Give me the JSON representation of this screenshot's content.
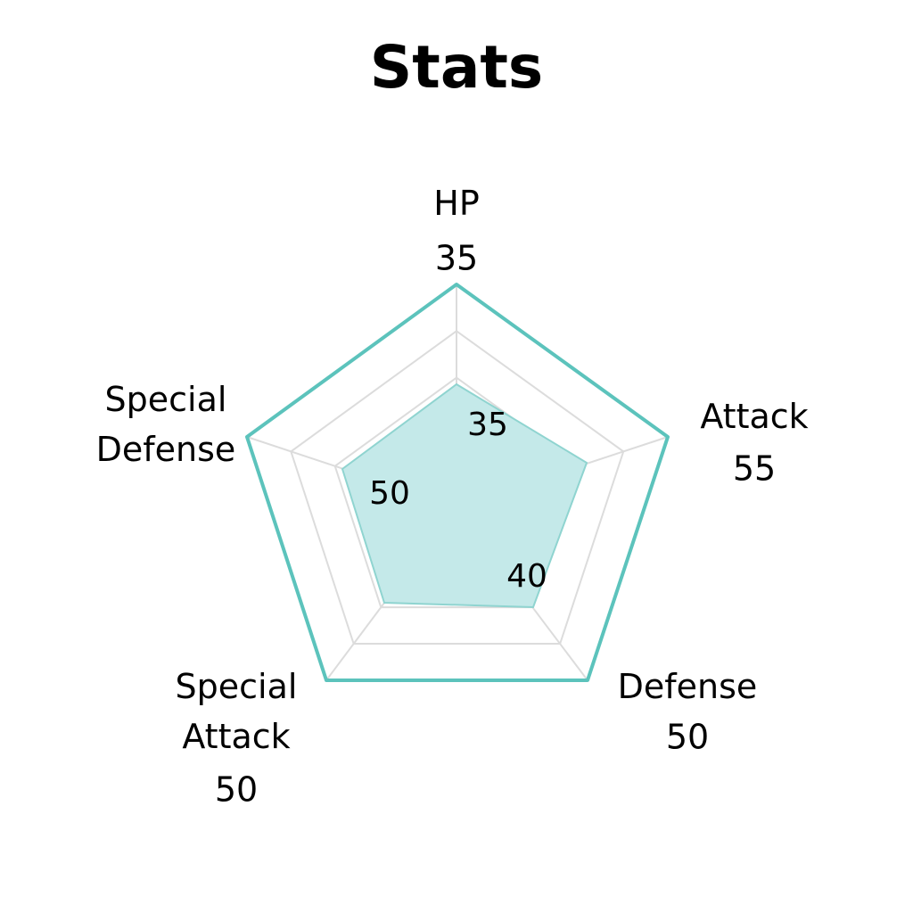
{
  "chart_data": {
    "type": "radar",
    "title": "Stats",
    "categories": [
      "HP",
      "Attack",
      "Defense",
      "Special Attack",
      "Special Defense"
    ],
    "category_label_lines": [
      [
        "HP"
      ],
      [
        "Attack"
      ],
      [
        "Defense"
      ],
      [
        "Special",
        "Attack"
      ],
      [
        "Special",
        "Defense"
      ]
    ],
    "series": [
      {
        "values": [
          35,
          55,
          50,
          50,
          50
        ]
      }
    ],
    "inner_value_labels": [
      "35",
      "40",
      "50"
    ],
    "grid": true,
    "grid_levels": 3,
    "colors": {
      "outline": "#5cc3bc",
      "fill": "#c4e9e9",
      "fill_stroke": "#8fd4d0",
      "grid": "#dcdcdc",
      "text": "#000000"
    }
  }
}
